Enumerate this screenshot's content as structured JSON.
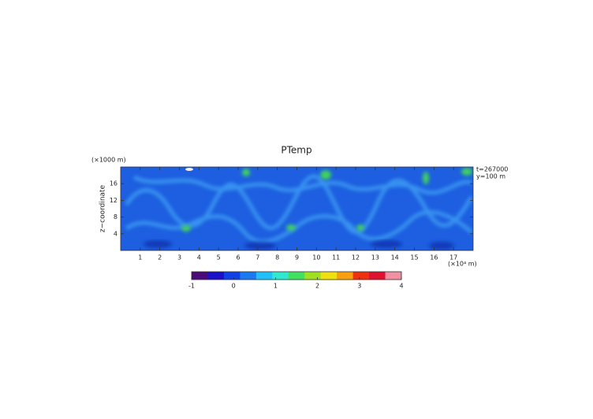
{
  "chart_data": {
    "type": "heatmap",
    "title": "PTemp",
    "y_unit_label": "(×1000 m)",
    "ylabel": "z−coordinate",
    "x_unit_label": "(×10⁴ m)",
    "annotations": [
      "t=267000",
      "y=100 m"
    ],
    "xlim": [
      0,
      18
    ],
    "xticks": [
      1,
      2,
      3,
      4,
      5,
      6,
      7,
      8,
      9,
      10,
      11,
      12,
      13,
      14,
      15,
      16,
      17
    ],
    "ylim": [
      0,
      20
    ],
    "yticks": [
      4,
      8,
      12,
      16
    ],
    "colorbar": {
      "lim": [
        -1,
        4
      ],
      "ticks": [
        -1,
        0,
        1,
        2,
        3,
        4
      ],
      "colors": [
        "#4a0a7a",
        "#1a10c8",
        "#1040e8",
        "#1a78f0",
        "#20c0f8",
        "#30e8d0",
        "#40e060",
        "#a0e020",
        "#f0e010",
        "#f8a010",
        "#f03010",
        "#e01030",
        "#f090a0"
      ]
    }
  }
}
